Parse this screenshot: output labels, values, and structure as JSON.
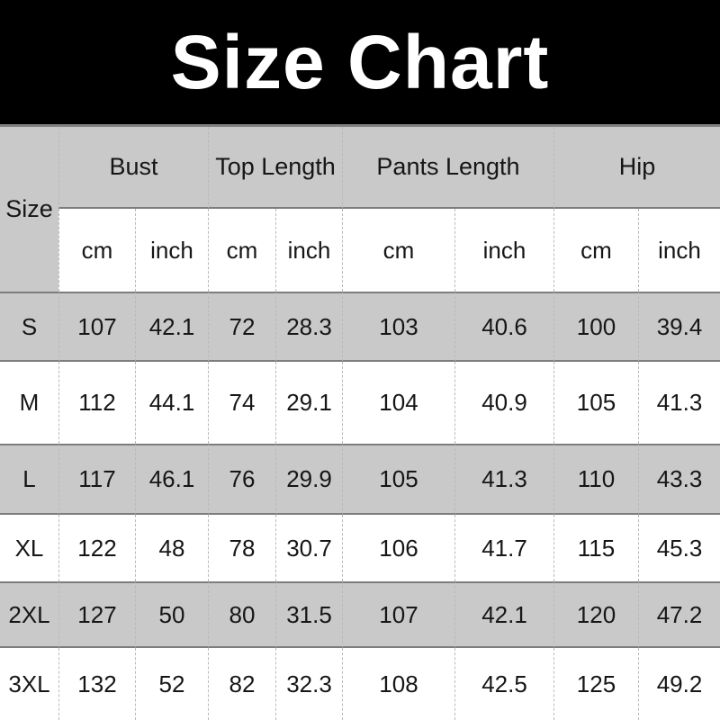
{
  "header": {
    "title": "Size Chart"
  },
  "table": {
    "size_label": "Size",
    "groups": [
      "Bust",
      "Top Length",
      "Pants Length",
      "Hip"
    ],
    "units": {
      "cm": "cm",
      "inch": "inch"
    },
    "rows": [
      {
        "size": "S",
        "values": [
          "107",
          "42.1",
          "72",
          "28.3",
          "103",
          "40.6",
          "100",
          "39.4"
        ]
      },
      {
        "size": "M",
        "values": [
          "112",
          "44.1",
          "74",
          "29.1",
          "104",
          "40.9",
          "105",
          "41.3"
        ]
      },
      {
        "size": "L",
        "values": [
          "117",
          "46.1",
          "76",
          "29.9",
          "105",
          "41.3",
          "110",
          "43.3"
        ]
      },
      {
        "size": "XL",
        "values": [
          "122",
          "48",
          "78",
          "30.7",
          "106",
          "41.7",
          "115",
          "45.3"
        ]
      },
      {
        "size": "2XL",
        "values": [
          "127",
          "50",
          "80",
          "31.5",
          "107",
          "42.1",
          "120",
          "47.2"
        ]
      },
      {
        "size": "3XL",
        "values": [
          "132",
          "52",
          "82",
          "32.3",
          "108",
          "42.5",
          "125",
          "49.2"
        ]
      }
    ]
  },
  "colors": {
    "banner_bg": "#000000",
    "banner_text": "#ffffff",
    "row_alt_bg": "#c9c9c9",
    "rule_dark": "#7d7d7d",
    "dashed_separator": "#b9b9b9",
    "text": "#161616"
  },
  "chart_data": {
    "type": "table",
    "title": "Size Chart",
    "columns": [
      "Size",
      "Bust cm",
      "Bust inch",
      "Top Length cm",
      "Top Length inch",
      "Pants Length cm",
      "Pants Length inch",
      "Hip cm",
      "Hip inch"
    ],
    "rows": [
      [
        "S",
        107,
        42.1,
        72,
        28.3,
        103,
        40.6,
        100,
        39.4
      ],
      [
        "M",
        112,
        44.1,
        74,
        29.1,
        104,
        40.9,
        105,
        41.3
      ],
      [
        "L",
        117,
        46.1,
        76,
        29.9,
        105,
        41.3,
        110,
        43.3
      ],
      [
        "XL",
        122,
        48,
        78,
        30.7,
        106,
        41.7,
        115,
        45.3
      ],
      [
        "2XL",
        127,
        50,
        80,
        31.5,
        107,
        42.1,
        120,
        47.2
      ],
      [
        "3XL",
        132,
        52,
        82,
        32.3,
        108,
        42.5,
        125,
        49.2
      ]
    ],
    "layout_hints": {
      "unit_pairs": true,
      "alternating_row_shading": [
        "S",
        "L",
        "2XL"
      ]
    }
  }
}
